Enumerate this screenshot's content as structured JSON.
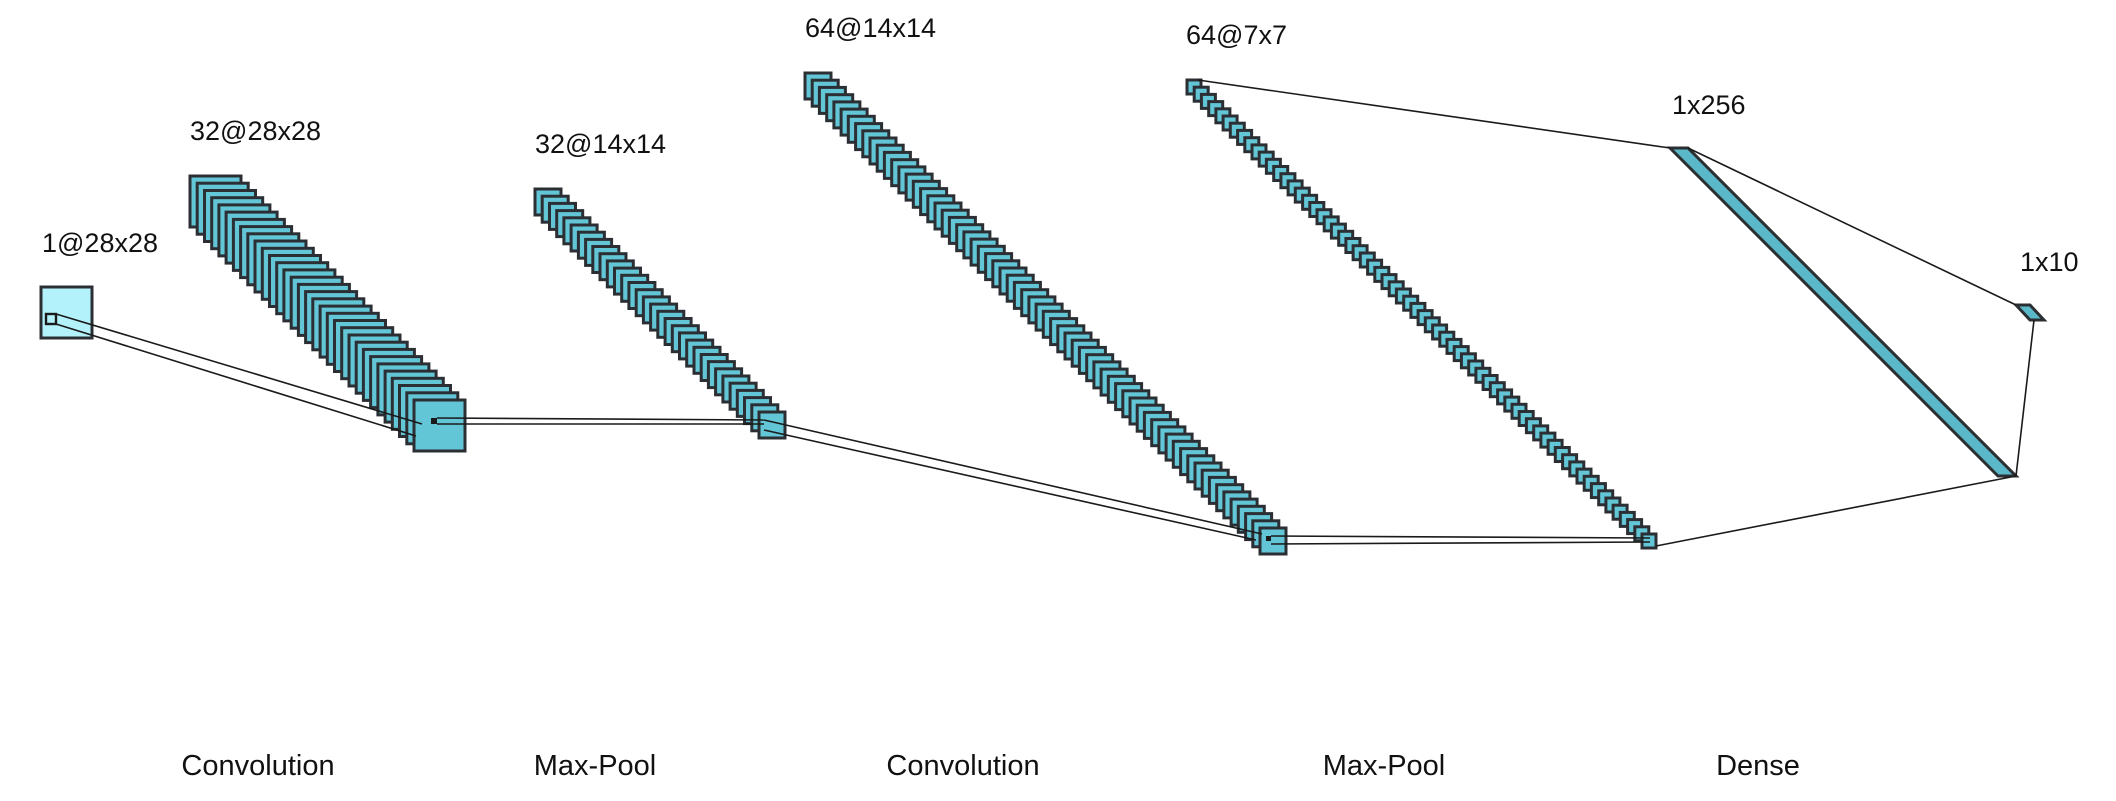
{
  "colors": {
    "input": "#b3f2fb",
    "feature_map": "#63c6d6",
    "dense": "#5bb8c8",
    "stroke": "#2b2f33"
  },
  "layers": [
    {
      "id": "input",
      "label": "1@28x28",
      "maps": 1
    },
    {
      "id": "conv1",
      "label": "32@28x28",
      "maps": 32
    },
    {
      "id": "pool1",
      "label": "32@14x14",
      "maps": 32
    },
    {
      "id": "conv2",
      "label": "64@14x14",
      "maps": 64
    },
    {
      "id": "pool2",
      "label": "64@7x7",
      "maps": 64
    },
    {
      "id": "dense1",
      "label": "1x256"
    },
    {
      "id": "dense2",
      "label": "1x10"
    }
  ],
  "operations": [
    {
      "id": "op1",
      "label": "Convolution"
    },
    {
      "id": "op2",
      "label": "Max-Pool"
    },
    {
      "id": "op3",
      "label": "Convolution"
    },
    {
      "id": "op4",
      "label": "Max-Pool"
    },
    {
      "id": "op5",
      "label": "Dense"
    }
  ]
}
